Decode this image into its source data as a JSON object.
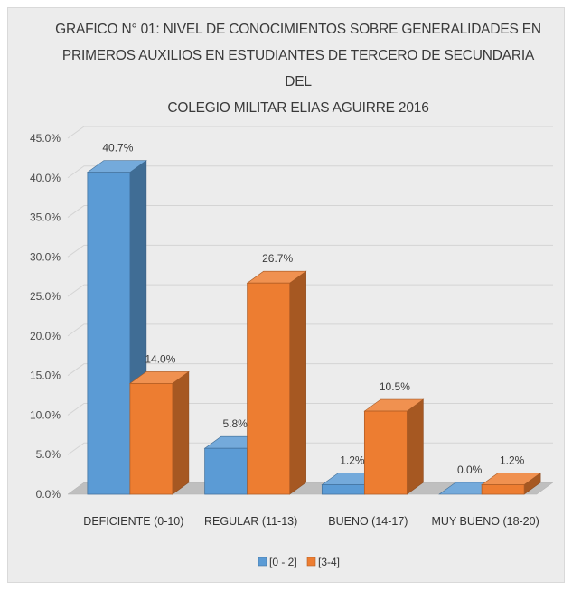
{
  "chart_data": {
    "type": "bar",
    "title": "GRAFICO N° 01: NIVEL DE CONOCIMIENTOS SOBRE GENERALIDADES EN PRIMEROS AUXILIOS EN ESTUDIANTES DE TERCERO DE SECUNDARIA DEL COLEGIO MILITAR ELIAS AGUIRRE 2016",
    "title_lines": [
      "GRAFICO N° 01: NIVEL DE CONOCIMIENTOS SOBRE GENERALIDADES EN",
      "PRIMEROS AUXILIOS EN ESTUDIANTES DE TERCERO DE SECUNDARIA DEL",
      "COLEGIO MILITAR ELIAS AGUIRRE 2016"
    ],
    "categories": [
      "DEFICIENTE (0-10)",
      "REGULAR (11-13)",
      "BUENO (14-17)",
      "MUY BUENO (18-20)"
    ],
    "series": [
      {
        "name": "[0 - 2]",
        "values": [
          40.7,
          5.8,
          1.2,
          0.0
        ],
        "labels": [
          "40.7%",
          "5.8%",
          "1.2%",
          "0.0%"
        ],
        "color": "#5b9bd5"
      },
      {
        "name": "[3-4]",
        "values": [
          14.0,
          26.7,
          10.5,
          1.2
        ],
        "labels": [
          "14.0%",
          "26.7%",
          "10.5%",
          "1.2%"
        ],
        "color": "#ed7d31"
      }
    ],
    "yticks": [
      "0.0%",
      "5.0%",
      "10.0%",
      "15.0%",
      "20.0%",
      "25.0%",
      "30.0%",
      "35.0%",
      "40.0%",
      "45.0%"
    ],
    "ylim": [
      0,
      45
    ],
    "grid": true,
    "legend_position": "bottom",
    "style": "3d-column"
  }
}
